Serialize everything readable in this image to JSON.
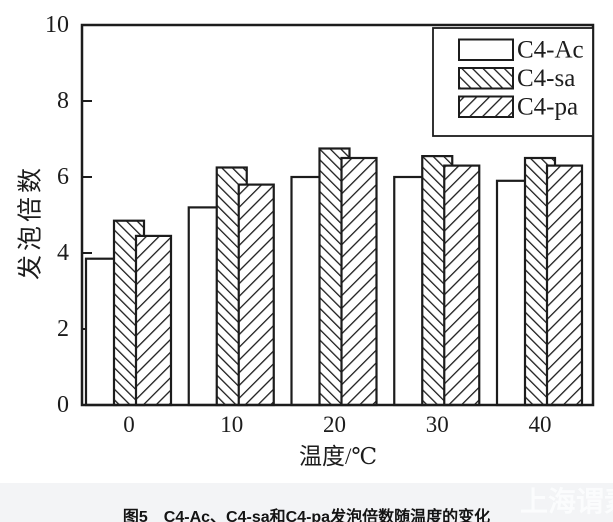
{
  "figure": {
    "caption": "图5　C4-Ac、C4-sa和C4-pa发泡倍数随温度的变化",
    "watermark": "上海谓素"
  },
  "chart_data": {
    "type": "bar",
    "title": "",
    "xlabel": "温度/℃",
    "ylabel": "发泡倍数",
    "categories": [
      "0",
      "10",
      "20",
      "30",
      "40"
    ],
    "series": [
      {
        "name": "C4-Ac",
        "pattern": "plain",
        "values": [
          3.85,
          5.2,
          6.0,
          6.0,
          5.9
        ]
      },
      {
        "name": "C4-sa",
        "pattern": "hatch-backslash",
        "values": [
          4.85,
          6.25,
          6.75,
          6.55,
          6.5
        ]
      },
      {
        "name": "C4-pa",
        "pattern": "hatch-slash",
        "values": [
          4.45,
          5.8,
          6.5,
          6.3,
          6.3
        ]
      }
    ],
    "ylim": [
      0,
      10
    ],
    "yticks": [
      0,
      2,
      4,
      6,
      8,
      10
    ],
    "grid": false,
    "legend_position": "top-right-inside",
    "colors": {
      "ink": "#1c1c1c",
      "background": "#ffffff"
    }
  }
}
